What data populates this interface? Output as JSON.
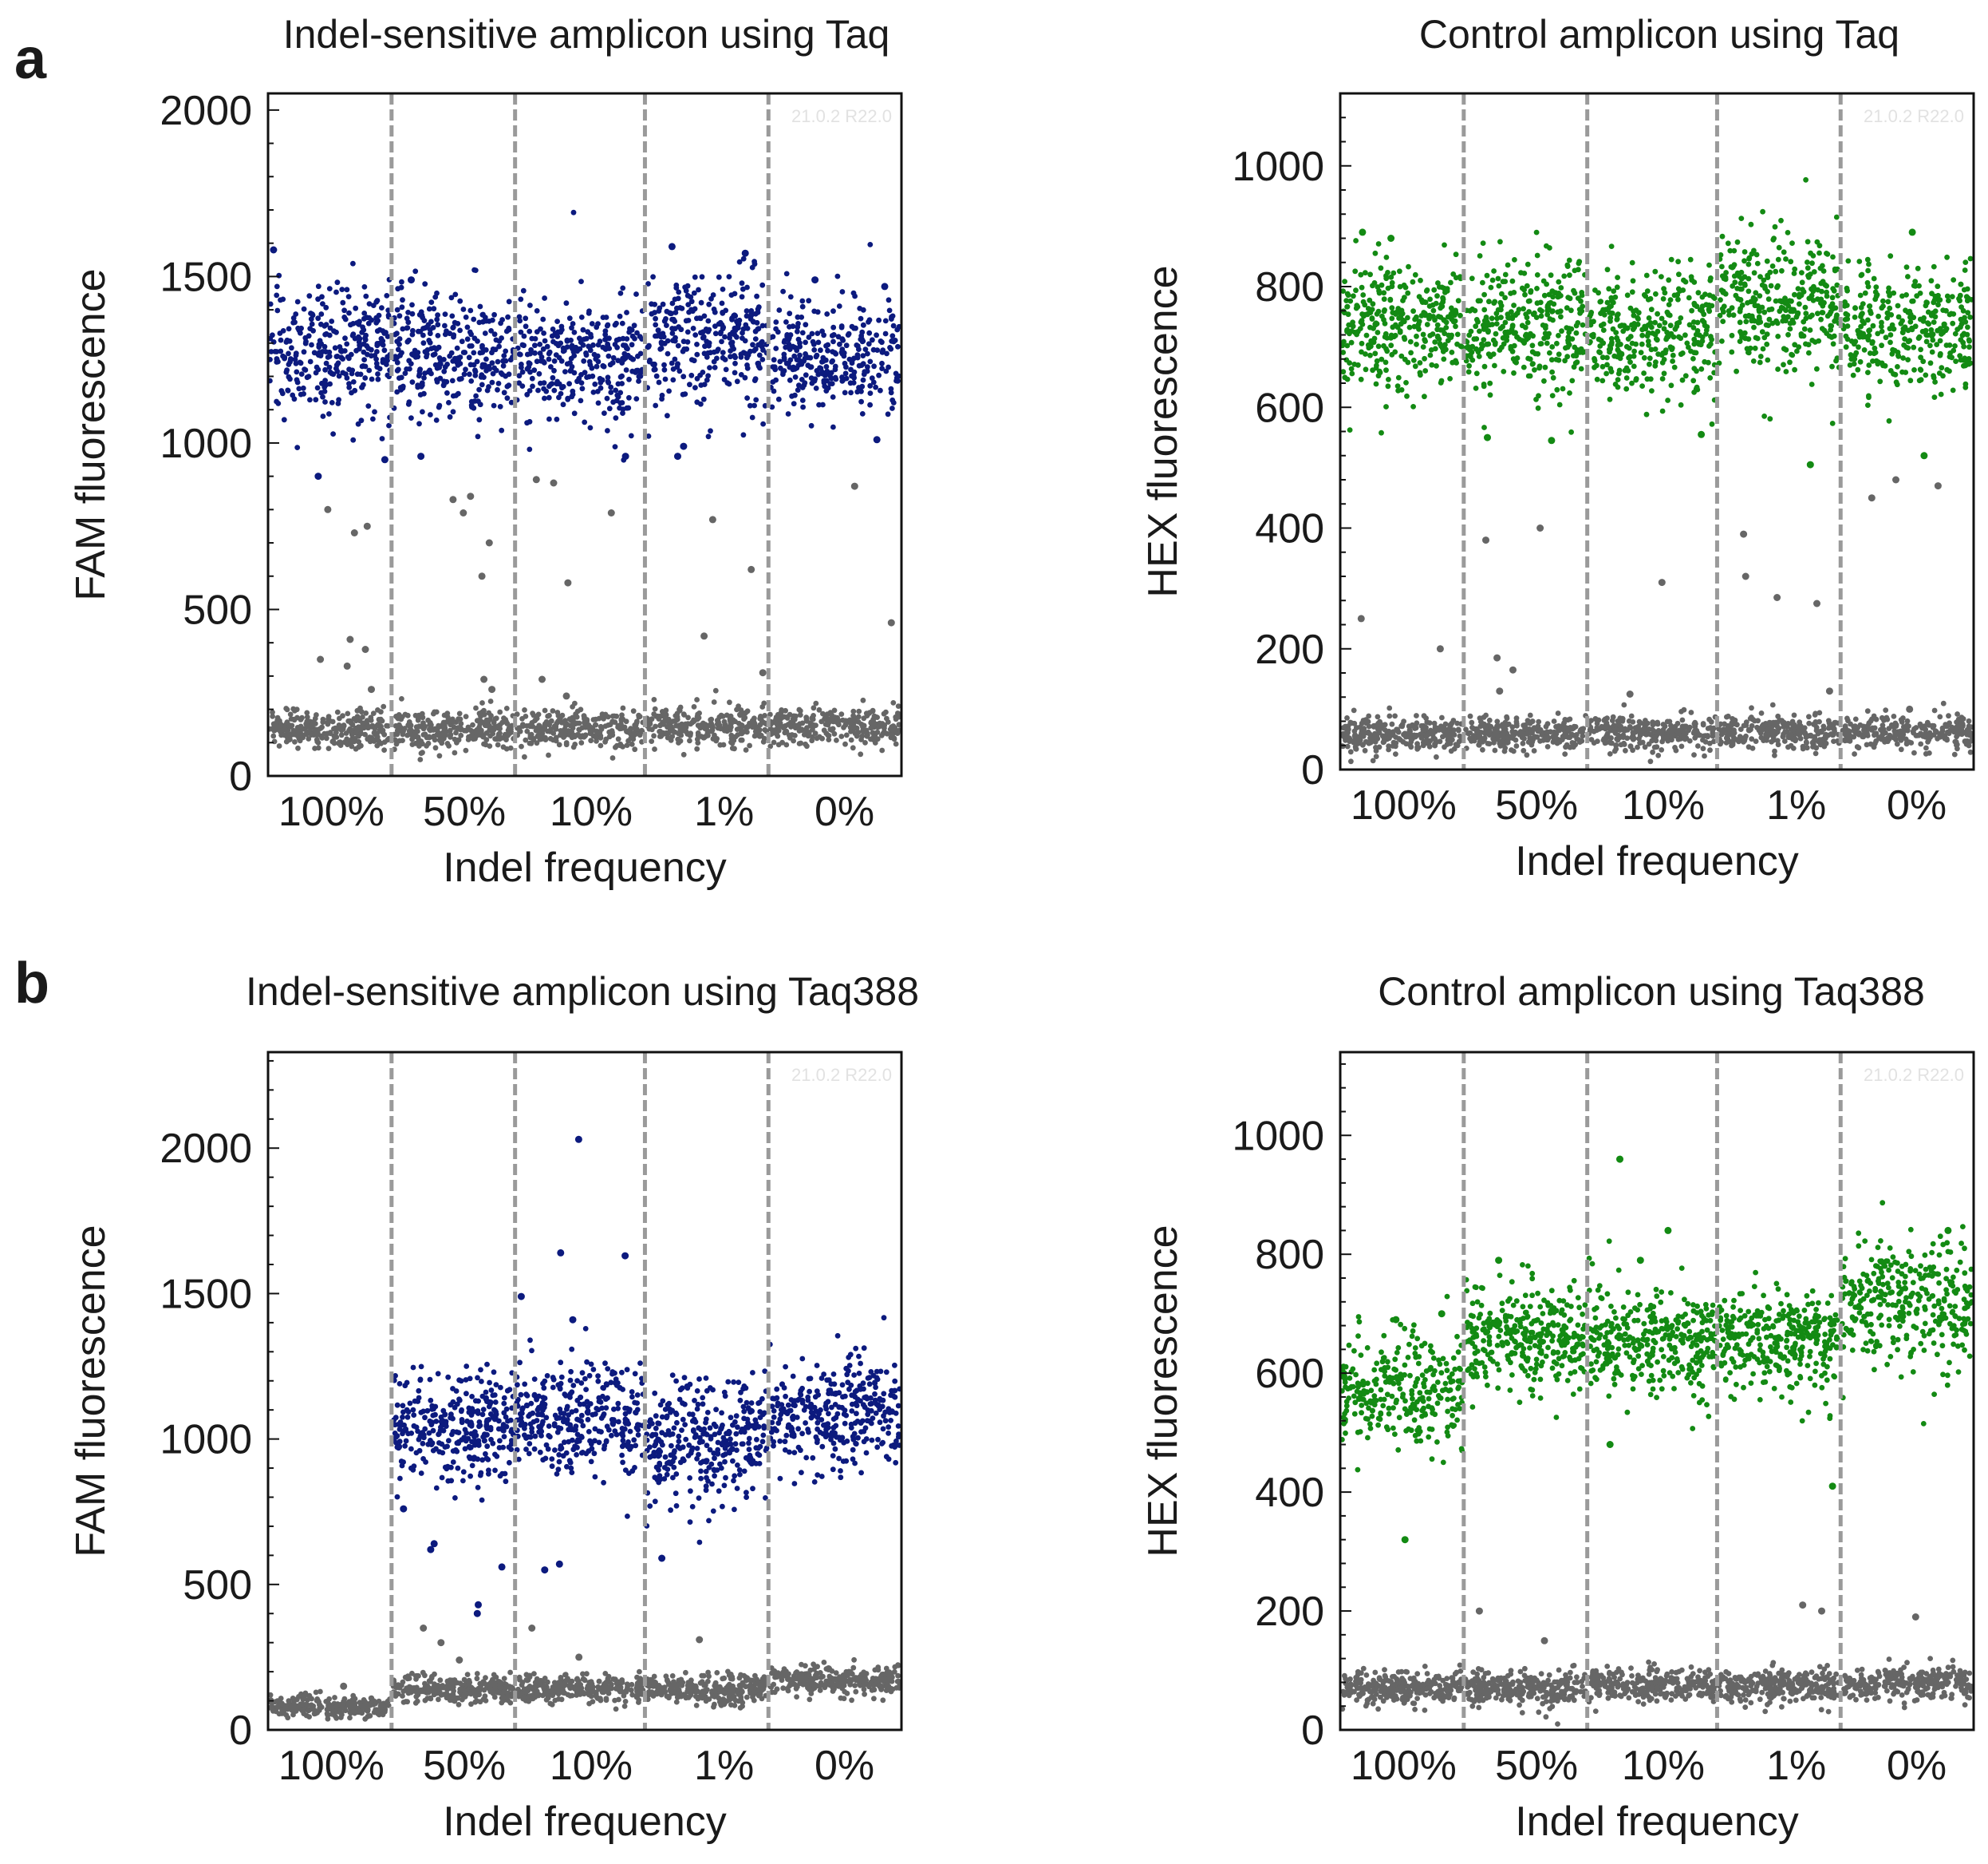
{
  "figure": {
    "panel_a_letter": "a",
    "panel_b_letter": "b"
  },
  "colors": {
    "fam_positive": "#0c1a7e",
    "hex_positive": "#138a13",
    "negative": "#666666",
    "divider": "#9a9a9a",
    "frame": "#111111",
    "watermark": "#e2e2e2"
  },
  "chart_data": [
    {
      "id": "a_left",
      "type": "scatter",
      "title": "Indel-sensitive amplicon using Taq",
      "xlabel": "Indel frequency",
      "ylabel": "FAM fluorescence",
      "ylim": [
        0,
        2050
      ],
      "yticks": [
        0,
        500,
        1000,
        1500,
        2000
      ],
      "categories": [
        "100%",
        "50%",
        "10%",
        "1%",
        "0%"
      ],
      "watermark": "21.0.2 R22.0",
      "series": [
        {
          "name": "FAM-positive droplets",
          "color": "fam_positive",
          "clusters": [
            {
              "center": 1270,
              "spread": 95,
              "count": 300
            },
            {
              "center": 1265,
              "spread": 92,
              "count": 300
            },
            {
              "center": 1255,
              "spread": 92,
              "count": 300
            },
            {
              "center": 1320,
              "spread": 95,
              "count": 300
            },
            {
              "center": 1265,
              "spread": 92,
              "count": 300
            }
          ]
        },
        {
          "name": "Negative droplets",
          "color": "negative",
          "clusters": [
            {
              "center": 140,
              "spread": 28,
              "count": 260
            },
            {
              "center": 140,
              "spread": 28,
              "count": 260
            },
            {
              "center": 140,
              "spread": 28,
              "count": 260
            },
            {
              "center": 150,
              "spread": 28,
              "count": 260
            },
            {
              "center": 150,
              "spread": 28,
              "count": 260
            }
          ]
        }
      ],
      "outliers": [
        {
          "cat": 0,
          "y": 1580,
          "s": "fam_positive"
        },
        {
          "cat": 0,
          "y": 950,
          "s": "fam_positive"
        },
        {
          "cat": 0,
          "y": 900,
          "s": "fam_positive"
        },
        {
          "cat": 0,
          "y": 800,
          "s": "negative"
        },
        {
          "cat": 0,
          "y": 750,
          "s": "negative"
        },
        {
          "cat": 0,
          "y": 730,
          "s": "negative"
        },
        {
          "cat": 0,
          "y": 410,
          "s": "negative"
        },
        {
          "cat": 0,
          "y": 380,
          "s": "negative"
        },
        {
          "cat": 0,
          "y": 350,
          "s": "negative"
        },
        {
          "cat": 0,
          "y": 330,
          "s": "negative"
        },
        {
          "cat": 0,
          "y": 260,
          "s": "negative"
        },
        {
          "cat": 1,
          "y": 1490,
          "s": "fam_positive"
        },
        {
          "cat": 1,
          "y": 960,
          "s": "fam_positive"
        },
        {
          "cat": 1,
          "y": 840,
          "s": "negative"
        },
        {
          "cat": 1,
          "y": 830,
          "s": "negative"
        },
        {
          "cat": 1,
          "y": 790,
          "s": "negative"
        },
        {
          "cat": 1,
          "y": 700,
          "s": "negative"
        },
        {
          "cat": 1,
          "y": 600,
          "s": "negative"
        },
        {
          "cat": 1,
          "y": 290,
          "s": "negative"
        },
        {
          "cat": 1,
          "y": 260,
          "s": "negative"
        },
        {
          "cat": 2,
          "y": 960,
          "s": "fam_positive"
        },
        {
          "cat": 2,
          "y": 890,
          "s": "negative"
        },
        {
          "cat": 2,
          "y": 880,
          "s": "negative"
        },
        {
          "cat": 2,
          "y": 790,
          "s": "negative"
        },
        {
          "cat": 2,
          "y": 580,
          "s": "negative"
        },
        {
          "cat": 2,
          "y": 290,
          "s": "negative"
        },
        {
          "cat": 2,
          "y": 240,
          "s": "negative"
        },
        {
          "cat": 3,
          "y": 1590,
          "s": "fam_positive"
        },
        {
          "cat": 3,
          "y": 1570,
          "s": "fam_positive"
        },
        {
          "cat": 3,
          "y": 990,
          "s": "fam_positive"
        },
        {
          "cat": 3,
          "y": 960,
          "s": "fam_positive"
        },
        {
          "cat": 3,
          "y": 770,
          "s": "negative"
        },
        {
          "cat": 3,
          "y": 620,
          "s": "negative"
        },
        {
          "cat": 3,
          "y": 420,
          "s": "negative"
        },
        {
          "cat": 3,
          "y": 310,
          "s": "negative"
        },
        {
          "cat": 4,
          "y": 1490,
          "s": "fam_positive"
        },
        {
          "cat": 4,
          "y": 1470,
          "s": "fam_positive"
        },
        {
          "cat": 4,
          "y": 1010,
          "s": "fam_positive"
        },
        {
          "cat": 4,
          "y": 870,
          "s": "negative"
        },
        {
          "cat": 4,
          "y": 460,
          "s": "negative"
        }
      ]
    },
    {
      "id": "a_right",
      "type": "scatter",
      "title": "Control amplicon using Taq",
      "xlabel": "Indel frequency",
      "ylabel": "HEX fluorescence",
      "ylim": [
        0,
        1120
      ],
      "yticks": [
        0,
        200,
        400,
        600,
        800,
        1000
      ],
      "categories": [
        "100%",
        "50%",
        "10%",
        "1%",
        "0%"
      ],
      "watermark": "21.0.2 R22.0",
      "series": [
        {
          "name": "HEX-positive droplets",
          "color": "hex_positive",
          "clusters": [
            {
              "center": 740,
              "spread": 55,
              "count": 320
            },
            {
              "center": 735,
              "spread": 55,
              "count": 320
            },
            {
              "center": 715,
              "spread": 52,
              "count": 320
            },
            {
              "center": 775,
              "spread": 55,
              "count": 320
            },
            {
              "center": 730,
              "spread": 52,
              "count": 320
            }
          ]
        },
        {
          "name": "Negative droplets",
          "color": "negative",
          "clusters": [
            {
              "center": 58,
              "spread": 14,
              "count": 260
            },
            {
              "center": 58,
              "spread": 14,
              "count": 260
            },
            {
              "center": 60,
              "spread": 14,
              "count": 260
            },
            {
              "center": 62,
              "spread": 14,
              "count": 260
            },
            {
              "center": 62,
              "spread": 14,
              "count": 260
            }
          ]
        }
      ],
      "outliers": [
        {
          "cat": 0,
          "y": 890,
          "s": "hex_positive"
        },
        {
          "cat": 0,
          "y": 880,
          "s": "hex_positive"
        },
        {
          "cat": 0,
          "y": 250,
          "s": "negative"
        },
        {
          "cat": 0,
          "y": 200,
          "s": "negative"
        },
        {
          "cat": 1,
          "y": 550,
          "s": "hex_positive"
        },
        {
          "cat": 1,
          "y": 545,
          "s": "hex_positive"
        },
        {
          "cat": 1,
          "y": 400,
          "s": "negative"
        },
        {
          "cat": 1,
          "y": 380,
          "s": "negative"
        },
        {
          "cat": 1,
          "y": 185,
          "s": "negative"
        },
        {
          "cat": 1,
          "y": 165,
          "s": "negative"
        },
        {
          "cat": 1,
          "y": 130,
          "s": "negative"
        },
        {
          "cat": 2,
          "y": 555,
          "s": "hex_positive"
        },
        {
          "cat": 2,
          "y": 310,
          "s": "negative"
        },
        {
          "cat": 2,
          "y": 125,
          "s": "negative"
        },
        {
          "cat": 3,
          "y": 505,
          "s": "hex_positive"
        },
        {
          "cat": 3,
          "y": 390,
          "s": "negative"
        },
        {
          "cat": 3,
          "y": 320,
          "s": "negative"
        },
        {
          "cat": 3,
          "y": 285,
          "s": "negative"
        },
        {
          "cat": 3,
          "y": 275,
          "s": "negative"
        },
        {
          "cat": 3,
          "y": 130,
          "s": "negative"
        },
        {
          "cat": 4,
          "y": 890,
          "s": "hex_positive"
        },
        {
          "cat": 4,
          "y": 520,
          "s": "hex_positive"
        },
        {
          "cat": 4,
          "y": 480,
          "s": "negative"
        },
        {
          "cat": 4,
          "y": 470,
          "s": "negative"
        },
        {
          "cat": 4,
          "y": 450,
          "s": "negative"
        },
        {
          "cat": 4,
          "y": 100,
          "s": "negative"
        }
      ]
    },
    {
      "id": "b_left",
      "type": "scatter",
      "title": "Indel-sensitive amplicon using Taq388",
      "xlabel": "Indel frequency",
      "ylabel": "FAM fluorescence",
      "ylim": [
        0,
        2330
      ],
      "yticks": [
        0,
        500,
        1000,
        1500,
        2000
      ],
      "categories": [
        "100%",
        "50%",
        "10%",
        "1%",
        "0%"
      ],
      "watermark": "21.0.2 R22.0",
      "series": [
        {
          "name": "FAM-positive droplets",
          "color": "fam_positive",
          "clusters": [
            {
              "center": 0,
              "spread": 0,
              "count": 0
            },
            {
              "center": 1040,
              "spread": 95,
              "count": 320
            },
            {
              "center": 1070,
              "spread": 95,
              "count": 320
            },
            {
              "center": 990,
              "spread": 100,
              "count": 320
            },
            {
              "center": 1090,
              "spread": 100,
              "count": 320
            }
          ]
        },
        {
          "name": "Negative droplets",
          "color": "negative",
          "clusters": [
            {
              "center": 80,
              "spread": 18,
              "count": 240
            },
            {
              "center": 140,
              "spread": 25,
              "count": 260
            },
            {
              "center": 140,
              "spread": 25,
              "count": 260
            },
            {
              "center": 140,
              "spread": 25,
              "count": 260
            },
            {
              "center": 170,
              "spread": 25,
              "count": 260
            }
          ]
        }
      ],
      "outliers": [
        {
          "cat": 0,
          "y": 150,
          "s": "negative"
        },
        {
          "cat": 1,
          "y": 760,
          "s": "fam_positive"
        },
        {
          "cat": 1,
          "y": 640,
          "s": "fam_positive"
        },
        {
          "cat": 1,
          "y": 620,
          "s": "fam_positive"
        },
        {
          "cat": 1,
          "y": 560,
          "s": "fam_positive"
        },
        {
          "cat": 1,
          "y": 430,
          "s": "fam_positive"
        },
        {
          "cat": 1,
          "y": 400,
          "s": "fam_positive"
        },
        {
          "cat": 1,
          "y": 350,
          "s": "negative"
        },
        {
          "cat": 1,
          "y": 300,
          "s": "negative"
        },
        {
          "cat": 1,
          "y": 240,
          "s": "negative"
        },
        {
          "cat": 2,
          "y": 2030,
          "s": "fam_positive"
        },
        {
          "cat": 2,
          "y": 1640,
          "s": "fam_positive"
        },
        {
          "cat": 2,
          "y": 1630,
          "s": "fam_positive"
        },
        {
          "cat": 2,
          "y": 1490,
          "s": "fam_positive"
        },
        {
          "cat": 2,
          "y": 1410,
          "s": "fam_positive"
        },
        {
          "cat": 2,
          "y": 570,
          "s": "fam_positive"
        },
        {
          "cat": 2,
          "y": 550,
          "s": "fam_positive"
        },
        {
          "cat": 2,
          "y": 350,
          "s": "negative"
        },
        {
          "cat": 2,
          "y": 250,
          "s": "negative"
        },
        {
          "cat": 3,
          "y": 590,
          "s": "fam_positive"
        },
        {
          "cat": 3,
          "y": 310,
          "s": "negative"
        },
        {
          "cat": 4,
          "y": 210,
          "s": "negative"
        }
      ]
    },
    {
      "id": "b_right",
      "type": "scatter",
      "title": "Control amplicon using Taq388",
      "xlabel": "Indel frequency",
      "ylabel": "HEX fluorescence",
      "ylim": [
        0,
        1140
      ],
      "yticks": [
        0,
        200,
        400,
        600,
        800,
        1000
      ],
      "categories": [
        "100%",
        "50%",
        "10%",
        "1%",
        "0%"
      ],
      "watermark": "21.0.2 R22.0",
      "series": [
        {
          "name": "HEX-positive droplets",
          "color": "hex_positive",
          "clusters": [
            {
              "center": 565,
              "spread": 48,
              "count": 280
            },
            {
              "center": 660,
              "spread": 45,
              "count": 320
            },
            {
              "center": 650,
              "spread": 45,
              "count": 320
            },
            {
              "center": 650,
              "spread": 45,
              "count": 320
            },
            {
              "center": 720,
              "spread": 55,
              "count": 320
            }
          ]
        },
        {
          "name": "Negative droplets",
          "color": "negative",
          "clusters": [
            {
              "center": 72,
              "spread": 14,
              "count": 260
            },
            {
              "center": 72,
              "spread": 14,
              "count": 260
            },
            {
              "center": 74,
              "spread": 14,
              "count": 260
            },
            {
              "center": 74,
              "spread": 14,
              "count": 260
            },
            {
              "center": 78,
              "spread": 14,
              "count": 260
            }
          ]
        }
      ],
      "outliers": [
        {
          "cat": 0,
          "y": 700,
          "s": "hex_positive"
        },
        {
          "cat": 0,
          "y": 690,
          "s": "hex_positive"
        },
        {
          "cat": 0,
          "y": 320,
          "s": "hex_positive"
        },
        {
          "cat": 1,
          "y": 790,
          "s": "hex_positive"
        },
        {
          "cat": 1,
          "y": 200,
          "s": "negative"
        },
        {
          "cat": 1,
          "y": 150,
          "s": "negative"
        },
        {
          "cat": 2,
          "y": 960,
          "s": "hex_positive"
        },
        {
          "cat": 2,
          "y": 840,
          "s": "hex_positive"
        },
        {
          "cat": 2,
          "y": 790,
          "s": "hex_positive"
        },
        {
          "cat": 2,
          "y": 480,
          "s": "hex_positive"
        },
        {
          "cat": 3,
          "y": 410,
          "s": "hex_positive"
        },
        {
          "cat": 3,
          "y": 210,
          "s": "negative"
        },
        {
          "cat": 3,
          "y": 200,
          "s": "negative"
        },
        {
          "cat": 4,
          "y": 840,
          "s": "hex_positive"
        },
        {
          "cat": 4,
          "y": 190,
          "s": "negative"
        }
      ]
    }
  ]
}
